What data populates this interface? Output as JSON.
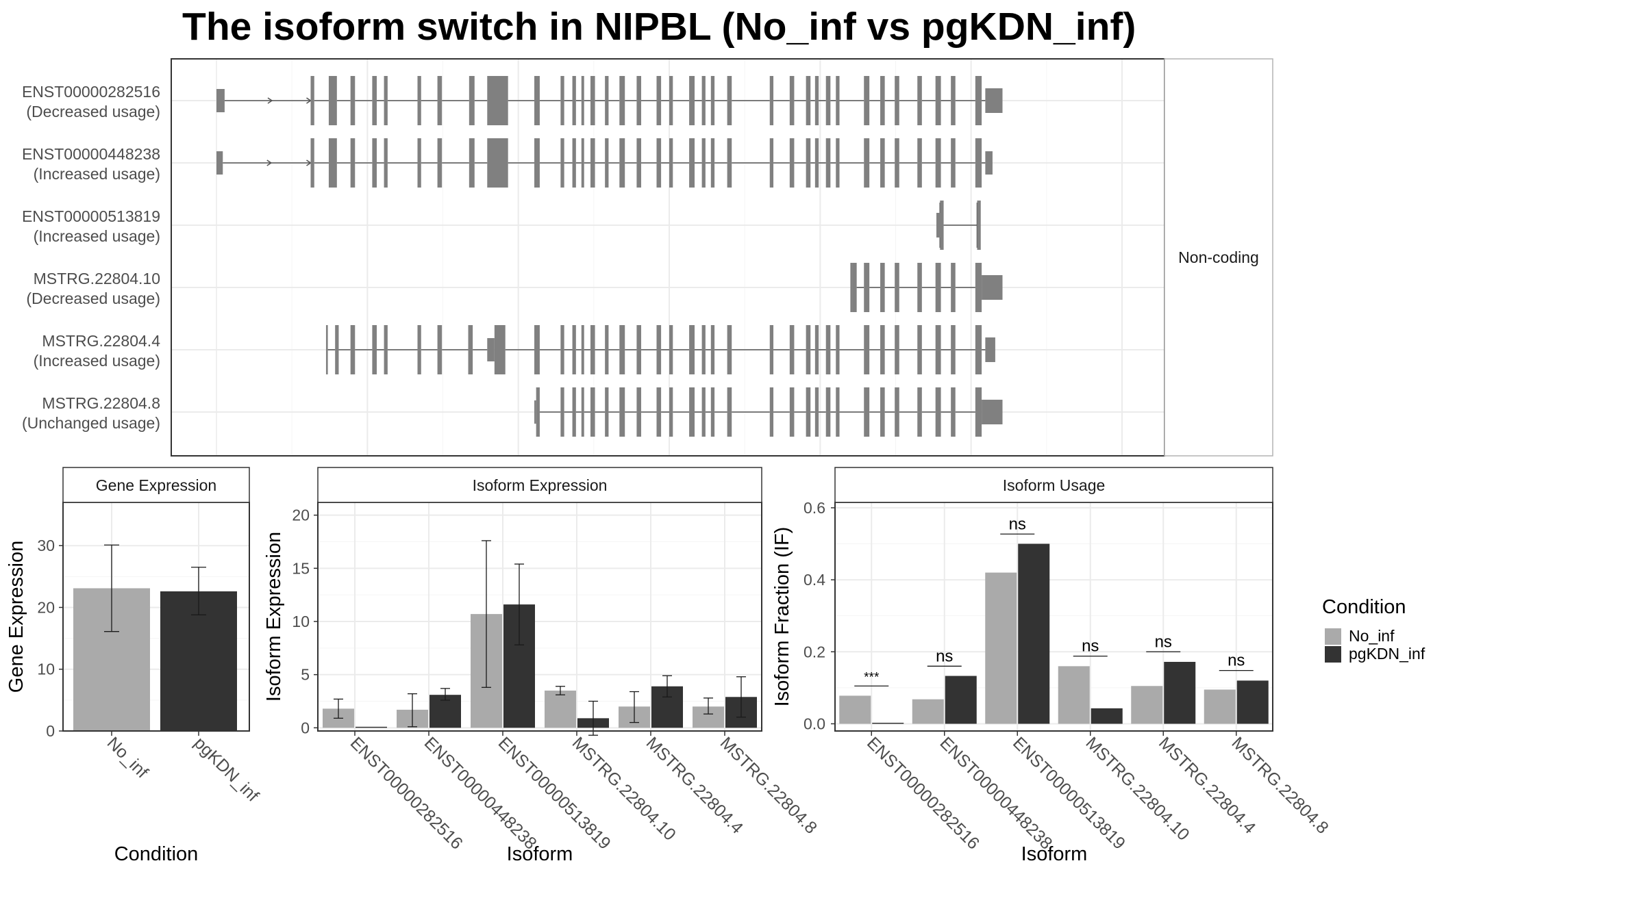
{
  "title": "The isoform switch in NIPBL (No_inf vs pgKDN_inf)",
  "colors": {
    "No_inf": "#aaaaaa",
    "pgKDN_inf": "#333333",
    "exon": "#808080",
    "intron": "#555555",
    "grid": "#ebebeb",
    "frame": "#333333",
    "strip": "#ffffff"
  },
  "structure": {
    "strip_label": "Non-coding",
    "genome_axis": [
      0,
      1000
    ],
    "isoforms": [
      {
        "name": "ENST00000282516",
        "usage": "(Decreased usage)",
        "exons": [
          [
            0,
            9,
            "s"
          ],
          [
            104,
            108,
            "t"
          ],
          [
            124,
            133,
            "t"
          ],
          [
            148,
            153,
            "t"
          ],
          [
            172,
            177,
            "t"
          ],
          [
            185,
            189,
            "t"
          ],
          [
            222,
            226,
            "t"
          ],
          [
            244,
            249,
            "t"
          ],
          [
            279,
            285,
            "t"
          ],
          [
            299,
            322,
            "t"
          ],
          [
            351,
            357,
            "t"
          ],
          [
            380,
            384,
            "t"
          ],
          [
            393,
            397,
            "t"
          ],
          [
            403,
            406,
            "t"
          ],
          [
            413,
            418,
            "t"
          ],
          [
            429,
            433,
            "t"
          ],
          [
            445,
            451,
            "t"
          ],
          [
            464,
            469,
            "t"
          ],
          [
            486,
            491,
            "t"
          ],
          [
            500,
            504,
            "t"
          ],
          [
            522,
            528,
            "t"
          ],
          [
            536,
            540,
            "t"
          ],
          [
            546,
            550,
            "t"
          ],
          [
            564,
            569,
            "t"
          ],
          [
            611,
            615,
            "t"
          ],
          [
            633,
            638,
            "t"
          ],
          [
            651,
            656,
            "t"
          ],
          [
            661,
            665,
            "t"
          ],
          [
            673,
            678,
            "t"
          ],
          [
            684,
            688,
            "t"
          ],
          [
            715,
            721,
            "t"
          ],
          [
            733,
            738,
            "t"
          ],
          [
            749,
            754,
            "t"
          ],
          [
            774,
            779,
            "t"
          ],
          [
            794,
            800,
            "t"
          ],
          [
            811,
            816,
            "t"
          ],
          [
            838,
            845,
            "t"
          ],
          [
            849,
            868,
            "m"
          ]
        ]
      },
      {
        "name": "ENST00000448238",
        "usage": "(Increased usage)",
        "exons": [
          [
            0,
            7,
            "s"
          ],
          [
            104,
            108,
            "t"
          ],
          [
            124,
            133,
            "t"
          ],
          [
            148,
            153,
            "t"
          ],
          [
            172,
            177,
            "t"
          ],
          [
            185,
            189,
            "t"
          ],
          [
            222,
            226,
            "t"
          ],
          [
            244,
            249,
            "t"
          ],
          [
            279,
            285,
            "t"
          ],
          [
            299,
            322,
            "t"
          ],
          [
            351,
            357,
            "t"
          ],
          [
            380,
            384,
            "t"
          ],
          [
            393,
            397,
            "t"
          ],
          [
            403,
            406,
            "t"
          ],
          [
            413,
            418,
            "t"
          ],
          [
            429,
            433,
            "t"
          ],
          [
            445,
            451,
            "t"
          ],
          [
            464,
            469,
            "t"
          ],
          [
            486,
            491,
            "t"
          ],
          [
            500,
            504,
            "t"
          ],
          [
            522,
            528,
            "t"
          ],
          [
            536,
            540,
            "t"
          ],
          [
            546,
            550,
            "t"
          ],
          [
            564,
            569,
            "t"
          ],
          [
            611,
            615,
            "t"
          ],
          [
            633,
            638,
            "t"
          ],
          [
            651,
            656,
            "t"
          ],
          [
            661,
            665,
            "t"
          ],
          [
            673,
            678,
            "t"
          ],
          [
            684,
            688,
            "t"
          ],
          [
            715,
            721,
            "t"
          ],
          [
            733,
            738,
            "t"
          ],
          [
            749,
            754,
            "t"
          ],
          [
            774,
            779,
            "t"
          ],
          [
            794,
            800,
            "t"
          ],
          [
            811,
            816,
            "t"
          ],
          [
            838,
            845,
            "t"
          ],
          [
            849,
            857,
            "s"
          ]
        ]
      },
      {
        "name": "ENST00000513819",
        "usage": "(Increased usage)",
        "exons": [
          [
            795,
            800,
            "m"
          ],
          [
            799,
            803,
            "t"
          ],
          [
            840,
            844,
            "t"
          ]
        ]
      },
      {
        "name": "MSTRG.22804.10",
        "usage": "(Decreased usage)",
        "exons": [
          [
            700,
            702,
            "t"
          ],
          [
            702,
            707,
            "t"
          ],
          [
            715,
            721,
            "t"
          ],
          [
            733,
            738,
            "t"
          ],
          [
            749,
            754,
            "t"
          ],
          [
            774,
            779,
            "t"
          ],
          [
            794,
            800,
            "t"
          ],
          [
            811,
            816,
            "t"
          ],
          [
            838,
            845,
            "t"
          ],
          [
            845,
            868,
            "m"
          ]
        ]
      },
      {
        "name": "MSTRG.22804.4",
        "usage": "(Increased usage)",
        "exons": [
          [
            121,
            123,
            "t"
          ],
          [
            131,
            135,
            "t"
          ],
          [
            148,
            153,
            "t"
          ],
          [
            172,
            177,
            "t"
          ],
          [
            185,
            189,
            "t"
          ],
          [
            222,
            226,
            "t"
          ],
          [
            244,
            249,
            "t"
          ],
          [
            278,
            283,
            "t"
          ],
          [
            299,
            307,
            "s"
          ],
          [
            307,
            319,
            "t"
          ],
          [
            351,
            357,
            "t"
          ],
          [
            380,
            384,
            "t"
          ],
          [
            393,
            397,
            "t"
          ],
          [
            403,
            406,
            "t"
          ],
          [
            413,
            418,
            "t"
          ],
          [
            429,
            433,
            "t"
          ],
          [
            445,
            451,
            "t"
          ],
          [
            464,
            469,
            "t"
          ],
          [
            486,
            491,
            "t"
          ],
          [
            500,
            504,
            "t"
          ],
          [
            522,
            528,
            "t"
          ],
          [
            536,
            540,
            "t"
          ],
          [
            546,
            550,
            "t"
          ],
          [
            564,
            569,
            "t"
          ],
          [
            611,
            615,
            "t"
          ],
          [
            633,
            638,
            "t"
          ],
          [
            651,
            656,
            "t"
          ],
          [
            661,
            665,
            "t"
          ],
          [
            673,
            678,
            "t"
          ],
          [
            684,
            688,
            "t"
          ],
          [
            715,
            721,
            "t"
          ],
          [
            733,
            738,
            "t"
          ],
          [
            749,
            754,
            "t"
          ],
          [
            774,
            779,
            "t"
          ],
          [
            794,
            800,
            "t"
          ],
          [
            811,
            816,
            "t"
          ],
          [
            838,
            845,
            "t"
          ],
          [
            849,
            860,
            "m"
          ]
        ]
      },
      {
        "name": "MSTRG.22804.8",
        "usage": "(Unchanged usage)",
        "exons": [
          [
            351,
            353,
            "s"
          ],
          [
            353,
            357,
            "t"
          ],
          [
            380,
            384,
            "t"
          ],
          [
            393,
            397,
            "t"
          ],
          [
            403,
            406,
            "t"
          ],
          [
            413,
            418,
            "t"
          ],
          [
            429,
            433,
            "t"
          ],
          [
            445,
            451,
            "t"
          ],
          [
            464,
            469,
            "t"
          ],
          [
            486,
            491,
            "t"
          ],
          [
            500,
            504,
            "t"
          ],
          [
            522,
            528,
            "t"
          ],
          [
            536,
            540,
            "t"
          ],
          [
            546,
            550,
            "t"
          ],
          [
            564,
            569,
            "t"
          ],
          [
            611,
            615,
            "t"
          ],
          [
            633,
            638,
            "t"
          ],
          [
            651,
            656,
            "t"
          ],
          [
            661,
            665,
            "t"
          ],
          [
            673,
            678,
            "t"
          ],
          [
            684,
            688,
            "t"
          ],
          [
            715,
            721,
            "t"
          ],
          [
            733,
            738,
            "t"
          ],
          [
            749,
            754,
            "t"
          ],
          [
            774,
            779,
            "t"
          ],
          [
            794,
            800,
            "t"
          ],
          [
            811,
            816,
            "t"
          ],
          [
            838,
            845,
            "t"
          ],
          [
            845,
            868,
            "m"
          ]
        ]
      }
    ]
  },
  "legend": {
    "title": "Condition",
    "entries": [
      "No_inf",
      "pgKDN_inf"
    ]
  },
  "chart_data": [
    {
      "type": "bar",
      "panel": "Gene Expression",
      "xlabel": "Condition",
      "ylabel": "Gene Expression",
      "ylim": [
        0,
        37
      ],
      "yticks": [
        0,
        10,
        20,
        30
      ],
      "categories": [
        "No_inf",
        "pgKDN_inf"
      ],
      "values": [
        23.1,
        22.6
      ],
      "err_low": [
        16.1,
        18.8
      ],
      "err_high": [
        30.1,
        26.5
      ]
    },
    {
      "type": "bar",
      "panel": "Isoform Expression",
      "xlabel": "Isoform",
      "ylabel": "Isoform Expression",
      "ylim": [
        -0.3,
        21.2
      ],
      "yticks": [
        0,
        5,
        10,
        15,
        20
      ],
      "categories": [
        "ENST00000282516",
        "ENST00000448238",
        "ENST00000513819",
        "MSTRG.22804.10",
        "MSTRG.22804.4",
        "MSTRG.22804.8"
      ],
      "series": [
        {
          "name": "No_inf",
          "values": [
            1.8,
            1.7,
            10.7,
            3.5,
            2.0,
            2.0
          ],
          "err_low": [
            0.9,
            0.1,
            3.8,
            3.1,
            0.5,
            1.3
          ],
          "err_high": [
            2.7,
            3.2,
            17.6,
            3.9,
            3.4,
            2.8
          ]
        },
        {
          "name": "pgKDN_inf",
          "values": [
            0.0,
            3.1,
            11.6,
            0.9,
            3.9,
            2.9
          ],
          "err_low": [
            0.0,
            2.6,
            7.8,
            -0.7,
            2.9,
            1.0
          ],
          "err_high": [
            0.0,
            3.7,
            15.4,
            2.5,
            4.9,
            4.8
          ]
        }
      ]
    },
    {
      "type": "bar",
      "panel": "Isoform Usage",
      "xlabel": "Isoform",
      "ylabel": "Isoform Fraction (IF)",
      "ylim": [
        -0.02,
        0.615
      ],
      "yticks": [
        0.0,
        0.2,
        0.4,
        0.6
      ],
      "ytick_labels": [
        "0.0",
        "0.2",
        "0.4",
        "0.6"
      ],
      "categories": [
        "ENST00000282516",
        "ENST00000448238",
        "ENST00000513819",
        "MSTRG.22804.10",
        "MSTRG.22804.4",
        "MSTRG.22804.8"
      ],
      "series": [
        {
          "name": "No_inf",
          "values": [
            0.078,
            0.068,
            0.42,
            0.16,
            0.105,
            0.095
          ]
        },
        {
          "name": "pgKDN_inf",
          "values": [
            0.0,
            0.133,
            0.5,
            0.043,
            0.172,
            0.12
          ]
        }
      ],
      "annotations": [
        "***",
        "ns",
        "ns",
        "ns",
        "ns",
        "ns"
      ],
      "annotation_y": [
        0.105,
        0.16,
        0.527,
        0.188,
        0.2,
        0.148
      ]
    }
  ]
}
